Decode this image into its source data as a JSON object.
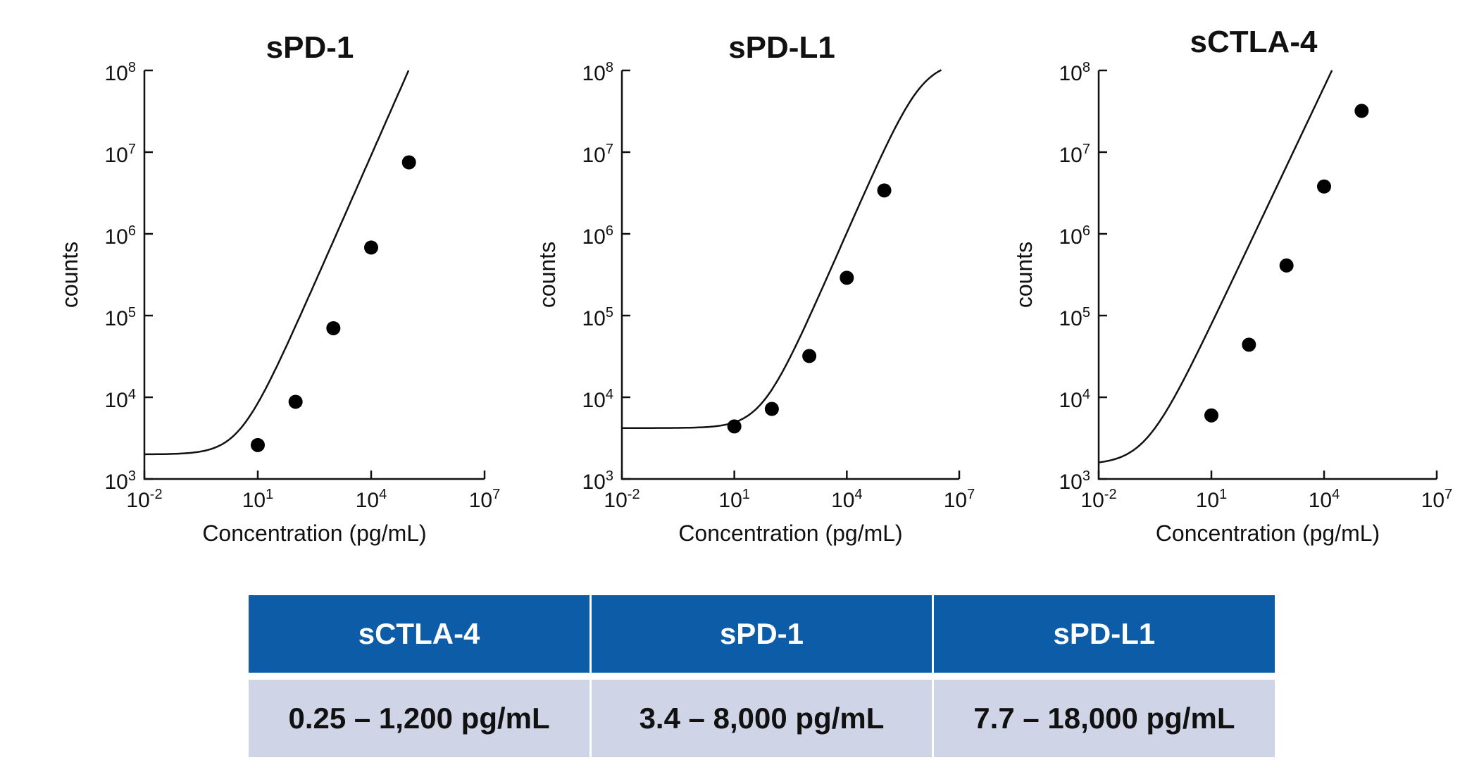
{
  "chart_data": [
    {
      "type": "line",
      "title": "sPD-1",
      "xlabel": "Concentration (pg/mL)",
      "ylabel": "counts",
      "x_scale": "log",
      "y_scale": "log",
      "xlim": [
        0.01,
        10000000
      ],
      "ylim": [
        1000,
        100000000
      ],
      "xticks": [
        {
          "base": "10",
          "exp": "-2"
        },
        {
          "base": "10",
          "exp": "1"
        },
        {
          "base": "10",
          "exp": "4"
        },
        {
          "base": "10",
          "exp": "7"
        }
      ],
      "yticks": [
        {
          "base": "10",
          "exp": "3"
        },
        {
          "base": "10",
          "exp": "4"
        },
        {
          "base": "10",
          "exp": "5"
        },
        {
          "base": "10",
          "exp": "6"
        },
        {
          "base": "10",
          "exp": "7"
        },
        {
          "base": "10",
          "exp": "8"
        }
      ],
      "points": [
        {
          "x": 10,
          "y": 2600
        },
        {
          "x": 100,
          "y": 8800
        },
        {
          "x": 1000,
          "y": 70000
        },
        {
          "x": 10000,
          "y": 680000
        },
        {
          "x": 100000,
          "y": 7500000
        }
      ],
      "curve": {
        "bottom": 2000,
        "top": 300000000000,
        "ec50": 200000000,
        "hill": 1.05
      },
      "grid": false,
      "legend": "none"
    },
    {
      "type": "line",
      "title": "sPD-L1",
      "xlabel": "Concentration (pg/mL)",
      "ylabel": "counts",
      "x_scale": "log",
      "y_scale": "log",
      "xlim": [
        0.01,
        10000000
      ],
      "ylim": [
        1000,
        100000000
      ],
      "xticks": [
        {
          "base": "10",
          "exp": "-2"
        },
        {
          "base": "10",
          "exp": "1"
        },
        {
          "base": "10",
          "exp": "4"
        },
        {
          "base": "10",
          "exp": "7"
        }
      ],
      "yticks": [
        {
          "base": "10",
          "exp": "3"
        },
        {
          "base": "10",
          "exp": "4"
        },
        {
          "base": "10",
          "exp": "5"
        },
        {
          "base": "10",
          "exp": "6"
        },
        {
          "base": "10",
          "exp": "7"
        },
        {
          "base": "10",
          "exp": "8"
        }
      ],
      "points": [
        {
          "x": 10,
          "y": 4400
        },
        {
          "x": 100,
          "y": 7200
        },
        {
          "x": 1000,
          "y": 32000
        },
        {
          "x": 10000,
          "y": 290000
        },
        {
          "x": 100000,
          "y": 3400000
        }
      ],
      "curve": {
        "bottom": 4200,
        "top": 130000000,
        "ec50": 1000000,
        "hill": 1.05
      },
      "grid": false,
      "legend": "none"
    },
    {
      "type": "line",
      "title": "sCTLA-4",
      "xlabel": "Concentration (pg/mL)",
      "ylabel": "counts",
      "x_scale": "log",
      "y_scale": "log",
      "xlim": [
        0.01,
        10000000
      ],
      "ylim": [
        1000,
        100000000
      ],
      "xticks": [
        {
          "base": "10",
          "exp": "-2"
        },
        {
          "base": "10",
          "exp": "1"
        },
        {
          "base": "10",
          "exp": "4"
        },
        {
          "base": "10",
          "exp": "7"
        }
      ],
      "yticks": [
        {
          "base": "10",
          "exp": "3"
        },
        {
          "base": "10",
          "exp": "4"
        },
        {
          "base": "10",
          "exp": "5"
        },
        {
          "base": "10",
          "exp": "6"
        },
        {
          "base": "10",
          "exp": "7"
        },
        {
          "base": "10",
          "exp": "8"
        }
      ],
      "points": [
        {
          "x": 10,
          "y": 6000
        },
        {
          "x": 100,
          "y": 44000
        },
        {
          "x": 1000,
          "y": 410000
        },
        {
          "x": 10000,
          "y": 3800000
        },
        {
          "x": 100000,
          "y": 32000000
        }
      ],
      "curve": {
        "bottom": 1500,
        "top": 100000000000,
        "ec50": 20000000,
        "hill": 0.97
      },
      "grid": false,
      "legend": "none"
    }
  ],
  "table": {
    "headers": [
      "sCTLA-4",
      "sPD-1",
      "sPD-L1"
    ],
    "row": [
      "0.25 – 1,200 pg/mL",
      "3.4 – 8,000 pg/mL",
      "7.7 – 18,000 pg/mL"
    ],
    "colors": {
      "header_bg": "#0c5ca8",
      "row_bg": "#cfd5e6"
    }
  }
}
